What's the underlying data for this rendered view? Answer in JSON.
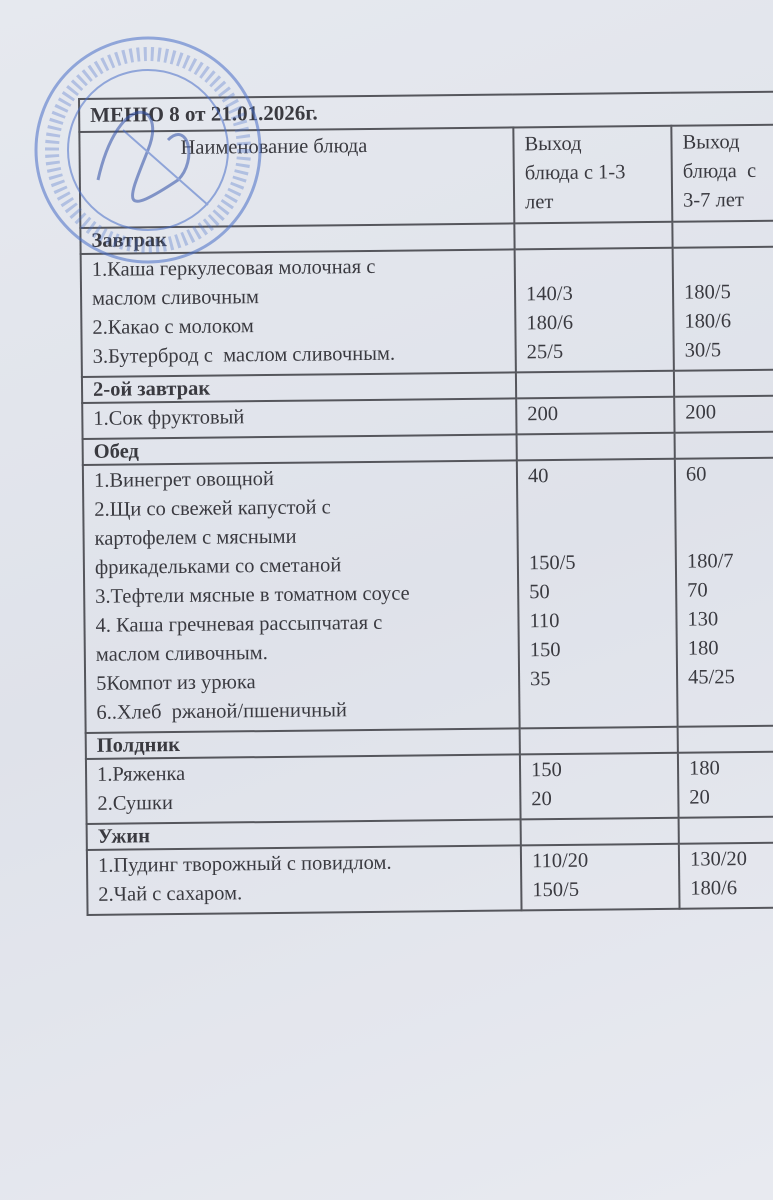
{
  "title": "МЕНЮ 8 от 21.01.2026г.",
  "headers": {
    "name": "Наименование блюда",
    "age1": [
      "Выход",
      "блюда с 1-3",
      "лет"
    ],
    "age2": [
      "Выход",
      "блюда  с",
      "3-7 лет"
    ]
  },
  "sections": [
    {
      "name": "Завтрак",
      "names": [
        "1.Каша геркулесовая молочная с",
        "маслом сливочным",
        "2.Какао с молоком",
        "3.Бутерброд с  маслом сливочным."
      ],
      "age1": [
        "",
        "140/3",
        "180/6",
        "25/5"
      ],
      "age2": [
        "",
        "180/5",
        "180/6",
        "30/5"
      ]
    },
    {
      "name": "2-ой завтрак",
      "names": [
        "1.Сок фруктовый"
      ],
      "age1": [
        "200"
      ],
      "age2": [
        "200"
      ]
    },
    {
      "name": "Обед",
      "names": [
        "1.Винегрет овощной",
        "2.Щи со свежей капустой с",
        "картофелем с мясными",
        "фрикадельками со сметаной",
        "3.Тефтели мясные в томатном соусе",
        "4. Каша гречневая рассыпчатая с",
        "маслом сливочным.",
        "5Компот из урюка",
        "6..Хлеб  ржаной/пшеничный"
      ],
      "age1": [
        "40",
        "",
        "",
        "150/5",
        "50",
        "110",
        "150",
        "35",
        ""
      ],
      "age2": [
        "60",
        "",
        "",
        "180/7",
        "70",
        "130",
        "180",
        "45/25",
        ""
      ]
    },
    {
      "name": "Полдник",
      "names": [
        "1.Ряженка",
        "2.Сушки"
      ],
      "age1": [
        "150",
        "20"
      ],
      "age2": [
        "180",
        "20"
      ]
    },
    {
      "name": "Ужин",
      "names": [
        "1.Пудинг творожный с повидлом.",
        "2.Чай с сахаром."
      ],
      "age1": [
        "110/20",
        "150/5"
      ],
      "age2": [
        "130/20",
        "180/6"
      ]
    }
  ],
  "colors": {
    "stamp": "#4a6fc8",
    "ink": "#3a3a40",
    "paper": "#e2e5ec"
  }
}
